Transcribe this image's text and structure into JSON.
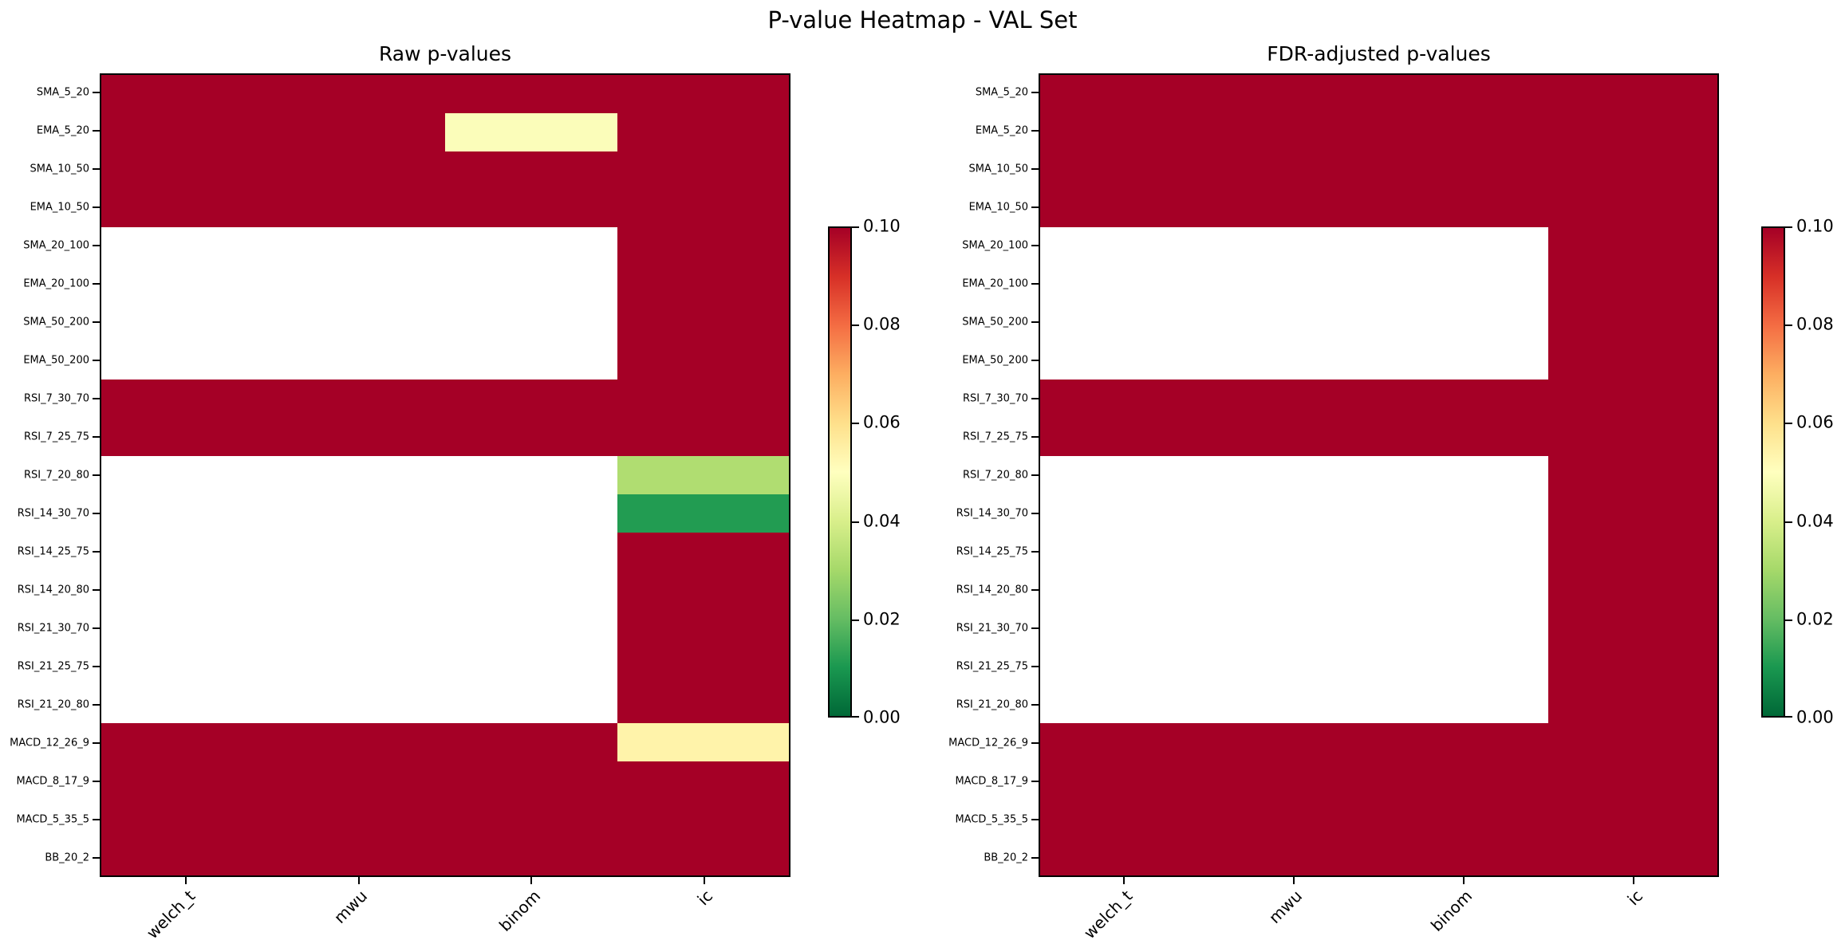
{
  "figure_title": "P-value Heatmap - VAL Set",
  "colors": {
    "background": "#ffffff",
    "axes_edge": "#000000",
    "text": "#000000",
    "nan_cell": "#ffffff",
    "cmap_max_red": "#a50026",
    "cmap_mid_yellow": "#ffffbf",
    "cmap_min_green": "#006837"
  },
  "colormap": {
    "name": "RdYlGn_r",
    "stops_low_to_high": [
      "#006837",
      "#1a9850",
      "#66bd63",
      "#a6d96a",
      "#d9ef8b",
      "#ffffbf",
      "#fee08b",
      "#fdae61",
      "#f46d43",
      "#d73027",
      "#a50026"
    ]
  },
  "chart_data": [
    {
      "type": "heatmap",
      "panel": "left",
      "title": "Raw p-values",
      "x_tick_labels": [
        "welch_t",
        "mwu",
        "binom",
        "ic"
      ],
      "y_tick_labels": [
        "SMA_5_20",
        "EMA_5_20",
        "SMA_10_50",
        "EMA_10_50",
        "SMA_20_100",
        "EMA_20_100",
        "SMA_50_200",
        "EMA_50_200",
        "RSI_7_30_70",
        "RSI_7_25_75",
        "RSI_7_20_80",
        "RSI_14_30_70",
        "RSI_14_25_75",
        "RSI_14_20_80",
        "RSI_21_30_70",
        "RSI_21_25_75",
        "RSI_21_20_80",
        "MACD_12_26_9",
        "MACD_8_17_9",
        "MACD_5_35_5",
        "BB_20_2"
      ],
      "vmin": 0.0,
      "vmax": 0.1,
      "clipped_value_note": "values stored as 1.0 are p >= 0.1 and render clamped at the colorbar maximum (dark red); null cells are missing/NaN (white)",
      "values": [
        [
          1,
          1,
          1,
          1
        ],
        [
          1,
          1,
          0.049,
          1
        ],
        [
          1,
          1,
          1,
          1
        ],
        [
          1,
          1,
          1,
          1
        ],
        [
          null,
          null,
          null,
          1
        ],
        [
          null,
          null,
          null,
          1
        ],
        [
          null,
          null,
          null,
          1
        ],
        [
          null,
          null,
          null,
          1
        ],
        [
          1,
          1,
          1,
          1
        ],
        [
          1,
          1,
          1,
          1
        ],
        [
          null,
          null,
          null,
          0.032
        ],
        [
          null,
          null,
          null,
          0.011
        ],
        [
          null,
          null,
          null,
          1
        ],
        [
          null,
          null,
          null,
          1
        ],
        [
          null,
          null,
          null,
          1
        ],
        [
          null,
          null,
          null,
          1
        ],
        [
          null,
          null,
          null,
          1
        ],
        [
          1,
          1,
          1,
          0.054
        ],
        [
          1,
          1,
          1,
          1
        ],
        [
          1,
          1,
          1,
          1
        ],
        [
          1,
          1,
          1,
          1
        ]
      ],
      "colorbar": {
        "tick_labels_top_to_bottom": [
          "0.10",
          "0.08",
          "0.06",
          "0.04",
          "0.02",
          "0.00"
        ]
      }
    },
    {
      "type": "heatmap",
      "panel": "right",
      "title": "FDR-adjusted p-values",
      "x_tick_labels": [
        "welch_t",
        "mwu",
        "binom",
        "ic"
      ],
      "y_tick_labels": [
        "SMA_5_20",
        "EMA_5_20",
        "SMA_10_50",
        "EMA_10_50",
        "SMA_20_100",
        "EMA_20_100",
        "SMA_50_200",
        "EMA_50_200",
        "RSI_7_30_70",
        "RSI_7_25_75",
        "RSI_7_20_80",
        "RSI_14_30_70",
        "RSI_14_25_75",
        "RSI_14_20_80",
        "RSI_21_30_70",
        "RSI_21_25_75",
        "RSI_21_20_80",
        "MACD_12_26_9",
        "MACD_8_17_9",
        "MACD_5_35_5",
        "BB_20_2"
      ],
      "vmin": 0.0,
      "vmax": 0.1,
      "clipped_value_note": "values stored as 1.0 are p >= 0.1 and render clamped at the colorbar maximum (dark red); null cells are missing/NaN (white)",
      "values": [
        [
          1,
          1,
          1,
          1
        ],
        [
          1,
          1,
          1,
          1
        ],
        [
          1,
          1,
          1,
          1
        ],
        [
          1,
          1,
          1,
          1
        ],
        [
          null,
          null,
          null,
          1
        ],
        [
          null,
          null,
          null,
          1
        ],
        [
          null,
          null,
          null,
          1
        ],
        [
          null,
          null,
          null,
          1
        ],
        [
          1,
          1,
          1,
          1
        ],
        [
          1,
          1,
          1,
          1
        ],
        [
          null,
          null,
          null,
          1
        ],
        [
          null,
          null,
          null,
          1
        ],
        [
          null,
          null,
          null,
          1
        ],
        [
          null,
          null,
          null,
          1
        ],
        [
          null,
          null,
          null,
          1
        ],
        [
          null,
          null,
          null,
          1
        ],
        [
          null,
          null,
          null,
          1
        ],
        [
          1,
          1,
          1,
          1
        ],
        [
          1,
          1,
          1,
          1
        ],
        [
          1,
          1,
          1,
          1
        ],
        [
          1,
          1,
          1,
          1
        ]
      ],
      "colorbar": {
        "tick_labels_top_to_bottom": [
          "0.10",
          "0.08",
          "0.06",
          "0.04",
          "0.02",
          "0.00"
        ]
      }
    }
  ]
}
